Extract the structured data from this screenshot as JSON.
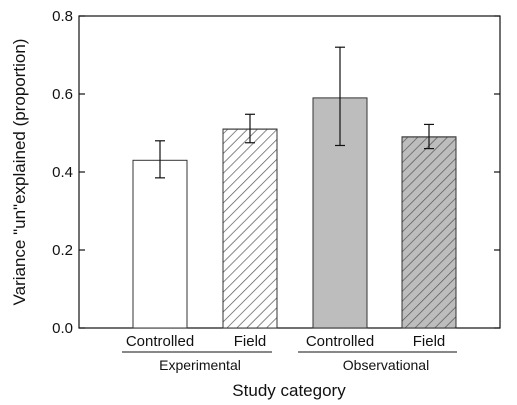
{
  "chart_data": {
    "type": "bar",
    "xlabel": "Study category",
    "ylabel": "Variance \"un\"explained (proportion)",
    "ylim": [
      0,
      0.8
    ],
    "yticks": [
      "0.0",
      "0.2",
      "0.4",
      "0.6",
      "0.8"
    ],
    "grid": false,
    "groups": [
      {
        "label": "Experimental",
        "categories": [
          "Controlled",
          "Field"
        ]
      },
      {
        "label": "Observational",
        "categories": [
          "Controlled",
          "Field"
        ]
      }
    ],
    "bars": [
      {
        "group": "Experimental",
        "category": "Controlled",
        "value": 0.43,
        "err_low": 0.385,
        "err_high": 0.48,
        "fill": "#ffffff",
        "pattern": "none"
      },
      {
        "group": "Experimental",
        "category": "Field",
        "value": 0.51,
        "err_low": 0.475,
        "err_high": 0.548,
        "fill": "#ffffff",
        "pattern": "hatch"
      },
      {
        "group": "Observational",
        "category": "Controlled",
        "value": 0.59,
        "err_low": 0.468,
        "err_high": 0.72,
        "fill": "#bdbdbd",
        "pattern": "none"
      },
      {
        "group": "Observational",
        "category": "Field",
        "value": 0.49,
        "err_low": 0.46,
        "err_high": 0.522,
        "fill": "#bdbdbd",
        "pattern": "hatch"
      }
    ]
  }
}
